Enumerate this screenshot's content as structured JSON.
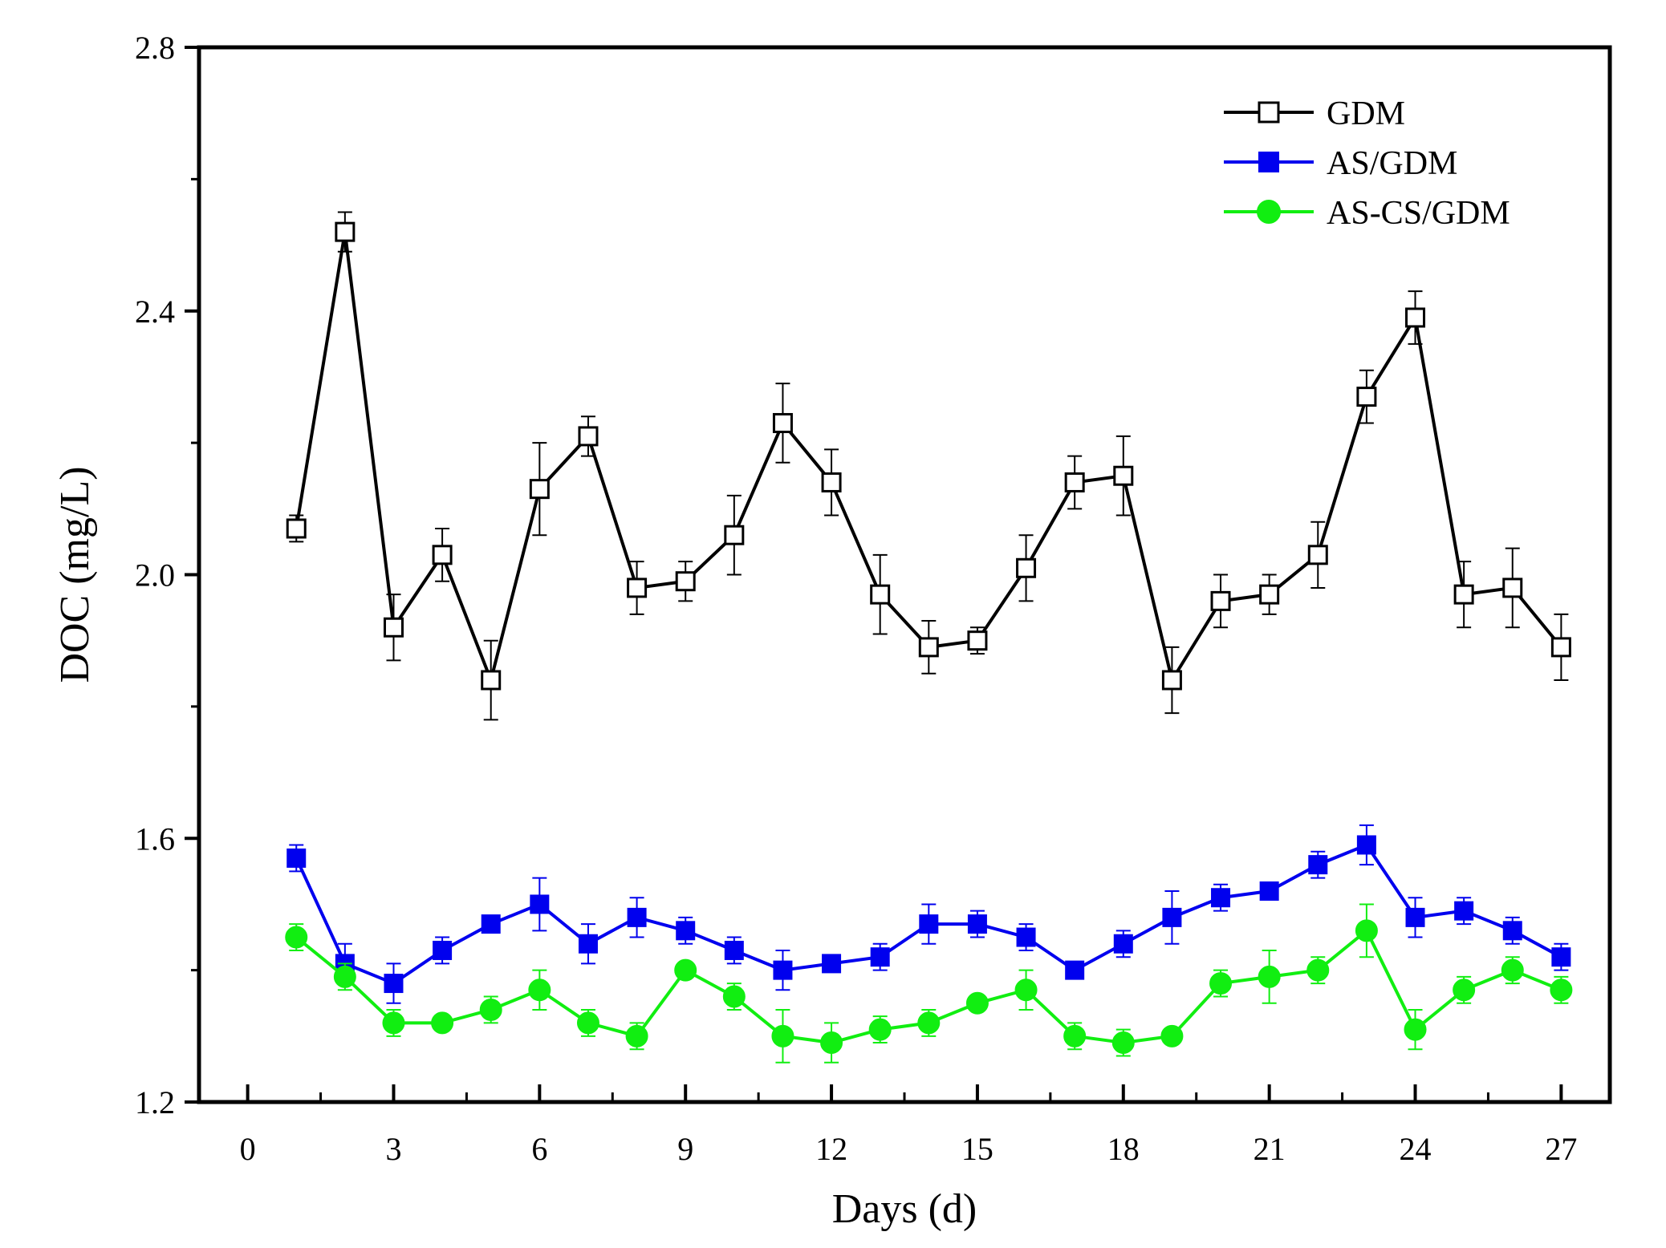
{
  "chart_data": {
    "type": "line",
    "title": "",
    "xlabel": "Days (d)",
    "ylabel": "DOC (mg/L)",
    "xlim": [
      -1,
      28
    ],
    "ylim": [
      1.2,
      2.8
    ],
    "xticks": [
      0,
      3,
      6,
      9,
      12,
      15,
      18,
      21,
      24,
      27
    ],
    "xtick_labels": [
      "0",
      "3",
      "6",
      "9",
      "12",
      "15",
      "18",
      "21",
      "24",
      "27"
    ],
    "yticks": [
      1.2,
      1.6,
      2.0,
      2.4,
      2.8
    ],
    "ytick_labels": [
      "1.2",
      "1.6",
      "2.0",
      "2.4",
      "2.8"
    ],
    "legend_position": "top-right",
    "x": [
      1,
      2,
      3,
      4,
      5,
      6,
      7,
      8,
      9,
      10,
      11,
      12,
      13,
      14,
      15,
      16,
      17,
      18,
      19,
      20,
      21,
      22,
      23,
      24,
      25,
      26,
      27
    ],
    "series": [
      {
        "name": "GDM",
        "color": "#000000",
        "marker": "open-square",
        "values": [
          2.07,
          2.52,
          1.92,
          2.03,
          1.84,
          2.13,
          2.21,
          1.98,
          1.99,
          2.06,
          2.23,
          2.14,
          1.97,
          1.89,
          1.9,
          2.01,
          2.14,
          2.15,
          1.84,
          1.96,
          1.97,
          2.03,
          2.27,
          2.39,
          1.97,
          1.98,
          1.89
        ],
        "errors": [
          0.02,
          0.03,
          0.05,
          0.04,
          0.06,
          0.07,
          0.03,
          0.04,
          0.03,
          0.06,
          0.06,
          0.05,
          0.06,
          0.04,
          0.02,
          0.05,
          0.04,
          0.06,
          0.05,
          0.04,
          0.03,
          0.05,
          0.04,
          0.04,
          0.05,
          0.06,
          0.05
        ]
      },
      {
        "name": "AS/GDM",
        "color": "#0000ee",
        "marker": "filled-square",
        "values": [
          1.57,
          1.41,
          1.38,
          1.43,
          1.47,
          1.5,
          1.44,
          1.48,
          1.46,
          1.43,
          1.4,
          1.41,
          1.42,
          1.47,
          1.47,
          1.45,
          1.4,
          1.44,
          1.48,
          1.51,
          1.52,
          1.56,
          1.59,
          1.48,
          1.49,
          1.46,
          1.42
        ],
        "errors": [
          0.02,
          0.03,
          0.03,
          0.02,
          0.01,
          0.04,
          0.03,
          0.03,
          0.02,
          0.02,
          0.03,
          0.01,
          0.02,
          0.03,
          0.02,
          0.02,
          0.01,
          0.02,
          0.04,
          0.02,
          0.01,
          0.02,
          0.03,
          0.03,
          0.02,
          0.02,
          0.02
        ]
      },
      {
        "name": "AS-CS/GDM",
        "color": "#11ee11",
        "marker": "filled-circle",
        "values": [
          1.45,
          1.39,
          1.32,
          1.32,
          1.34,
          1.37,
          1.32,
          1.3,
          1.4,
          1.36,
          1.3,
          1.29,
          1.31,
          1.32,
          1.35,
          1.37,
          1.3,
          1.29,
          1.3,
          1.38,
          1.39,
          1.4,
          1.46,
          1.31,
          1.37,
          1.4,
          1.37
        ],
        "errors": [
          0.02,
          0.02,
          0.02,
          0.01,
          0.02,
          0.03,
          0.02,
          0.02,
          0.01,
          0.02,
          0.04,
          0.03,
          0.02,
          0.02,
          0.01,
          0.03,
          0.02,
          0.02,
          0.01,
          0.02,
          0.04,
          0.02,
          0.04,
          0.03,
          0.02,
          0.02,
          0.02
        ]
      }
    ]
  }
}
